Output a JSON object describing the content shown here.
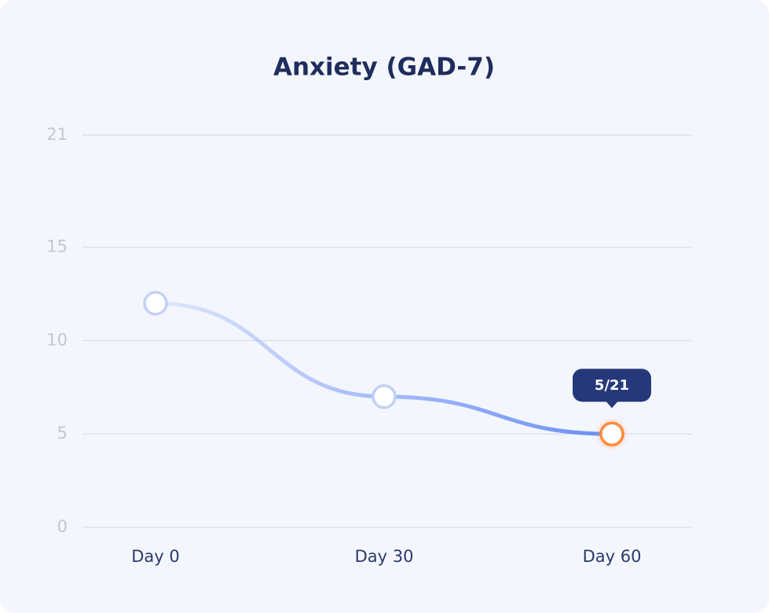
{
  "chart_data": {
    "type": "line",
    "title": "Anxiety (GAD-7)",
    "categories": [
      "Day 0",
      "Day 30",
      "Day 60"
    ],
    "series": [
      {
        "color": "#6a8ff5",
        "values": [
          12,
          7,
          5
        ],
        "value_labels": [
          null,
          null,
          "5/21"
        ]
      }
    ],
    "highlight_color": "#ff8a3d",
    "ylim": [
      0,
      21
    ],
    "yticks": [
      0,
      5,
      10,
      15,
      21
    ],
    "grid": true
  }
}
